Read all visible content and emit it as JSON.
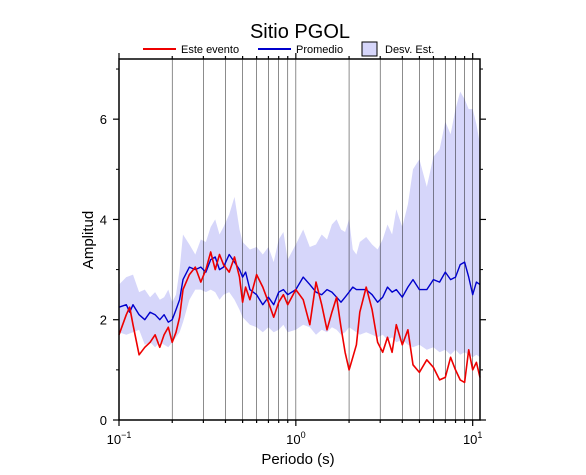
{
  "chart_data": {
    "type": "line",
    "title": "Sitio PGOL",
    "xlabel": "Periodo (s)",
    "ylabel": "Amplitud",
    "xscale": "log",
    "xlim": [
      0.1,
      11
    ],
    "ylim": [
      0,
      7.2
    ],
    "x_tick_labels": [
      {
        "base": "10",
        "exp": "−1",
        "value": 0.1
      },
      {
        "base": "10",
        "exp": "0",
        "value": 1
      },
      {
        "base": "10",
        "exp": "1",
        "value": 10
      }
    ],
    "y_ticks": [
      {
        "label": "0",
        "value": 0
      },
      {
        "label": "2",
        "value": 2
      },
      {
        "label": "4",
        "value": 4
      },
      {
        "label": "6",
        "value": 6
      }
    ],
    "grid": "vertical",
    "legend_position": "top",
    "legend": {
      "este_evento": "Este evento",
      "promedio": "Promedio",
      "desv_est": "Desv. Est."
    },
    "colors": {
      "este_evento": "#ee0000",
      "promedio": "#0000cc",
      "band_fill": "#d6d6fa",
      "grid": "#000000"
    },
    "series": [
      {
        "name": "Este evento",
        "x": [
          0.1,
          0.11,
          0.115,
          0.12,
          0.13,
          0.14,
          0.15,
          0.16,
          0.17,
          0.18,
          0.19,
          0.2,
          0.21,
          0.22,
          0.23,
          0.25,
          0.27,
          0.29,
          0.31,
          0.33,
          0.35,
          0.37,
          0.39,
          0.42,
          0.45,
          0.48,
          0.5,
          0.52,
          0.55,
          0.6,
          0.65,
          0.7,
          0.75,
          0.8,
          0.85,
          0.9,
          1.0,
          1.1,
          1.2,
          1.3,
          1.4,
          1.5,
          1.6,
          1.7,
          1.8,
          1.9,
          2.0,
          2.1,
          2.2,
          2.3,
          2.5,
          2.7,
          2.9,
          3.1,
          3.3,
          3.5,
          3.7,
          4.0,
          4.3,
          4.6,
          5.0,
          5.5,
          6.0,
          6.5,
          7.0,
          7.5,
          8.0,
          8.5,
          9.0,
          9.5,
          10.0,
          10.5,
          11.0
        ],
        "y": [
          1.7,
          2.1,
          2.25,
          1.9,
          1.3,
          1.45,
          1.55,
          1.7,
          1.45,
          1.7,
          1.85,
          1.55,
          1.75,
          2.05,
          2.6,
          2.9,
          3.05,
          2.75,
          3.0,
          3.35,
          3.0,
          3.3,
          3.1,
          2.95,
          3.25,
          2.85,
          2.35,
          2.65,
          2.4,
          2.9,
          2.65,
          2.35,
          2.05,
          2.35,
          2.5,
          2.3,
          2.6,
          2.4,
          1.9,
          2.75,
          2.3,
          1.8,
          2.15,
          2.45,
          1.85,
          1.35,
          1.0,
          1.25,
          1.5,
          2.15,
          2.65,
          2.2,
          1.55,
          1.35,
          1.65,
          1.35,
          1.9,
          1.5,
          1.8,
          1.1,
          0.95,
          1.2,
          1.05,
          0.8,
          0.85,
          1.25,
          1.0,
          0.8,
          0.75,
          1.4,
          1.0,
          1.15,
          0.85
        ]
      },
      {
        "name": "Promedio",
        "x": [
          0.1,
          0.11,
          0.115,
          0.12,
          0.13,
          0.14,
          0.15,
          0.16,
          0.17,
          0.18,
          0.19,
          0.2,
          0.21,
          0.22,
          0.23,
          0.25,
          0.27,
          0.29,
          0.31,
          0.33,
          0.35,
          0.37,
          0.39,
          0.42,
          0.45,
          0.48,
          0.5,
          0.52,
          0.55,
          0.6,
          0.65,
          0.7,
          0.75,
          0.8,
          0.85,
          0.9,
          1.0,
          1.1,
          1.2,
          1.3,
          1.4,
          1.5,
          1.6,
          1.7,
          1.8,
          1.9,
          2.0,
          2.1,
          2.2,
          2.3,
          2.5,
          2.7,
          2.9,
          3.1,
          3.3,
          3.5,
          3.7,
          4.0,
          4.3,
          4.6,
          5.0,
          5.5,
          6.0,
          6.5,
          7.0,
          7.5,
          8.0,
          8.5,
          9.0,
          9.5,
          10.0,
          10.5,
          11.0
        ],
        "y": [
          2.25,
          2.3,
          2.15,
          2.3,
          2.1,
          2.0,
          2.15,
          2.1,
          2.0,
          2.1,
          1.95,
          2.0,
          2.2,
          2.4,
          2.8,
          3.05,
          3.0,
          3.05,
          2.95,
          3.2,
          3.25,
          3.0,
          3.05,
          3.3,
          3.15,
          3.0,
          2.85,
          2.95,
          2.6,
          2.5,
          2.3,
          2.45,
          2.3,
          2.55,
          2.6,
          2.5,
          2.6,
          2.85,
          2.7,
          2.55,
          2.5,
          2.6,
          2.55,
          2.45,
          2.35,
          2.45,
          2.55,
          2.65,
          2.6,
          2.6,
          2.6,
          2.5,
          2.35,
          2.45,
          2.65,
          2.55,
          2.6,
          2.45,
          2.65,
          2.8,
          2.6,
          2.6,
          2.8,
          2.75,
          2.95,
          2.8,
          2.85,
          3.1,
          3.15,
          2.85,
          2.5,
          2.75,
          2.7
        ]
      }
    ],
    "band": {
      "name": "Desv. Est.",
      "x": [
        0.1,
        0.11,
        0.12,
        0.13,
        0.14,
        0.15,
        0.16,
        0.17,
        0.18,
        0.19,
        0.2,
        0.21,
        0.22,
        0.23,
        0.25,
        0.27,
        0.29,
        0.31,
        0.33,
        0.35,
        0.37,
        0.39,
        0.42,
        0.45,
        0.48,
        0.5,
        0.55,
        0.6,
        0.65,
        0.7,
        0.75,
        0.8,
        0.85,
        0.9,
        1.0,
        1.1,
        1.2,
        1.3,
        1.4,
        1.5,
        1.6,
        1.7,
        1.8,
        1.9,
        2.0,
        2.1,
        2.2,
        2.3,
        2.5,
        2.7,
        2.9,
        3.1,
        3.3,
        3.5,
        3.7,
        4.0,
        4.3,
        4.6,
        5.0,
        5.5,
        6.0,
        6.5,
        7.0,
        7.5,
        8.0,
        8.5,
        9.0,
        9.5,
        10.0,
        10.5,
        11.0
      ],
      "upper": [
        2.7,
        2.85,
        2.9,
        2.55,
        2.6,
        2.45,
        2.55,
        2.4,
        2.45,
        2.6,
        2.35,
        2.5,
        3.0,
        3.7,
        3.5,
        3.3,
        3.6,
        3.55,
        3.85,
        4.0,
        3.7,
        3.85,
        4.1,
        4.45,
        3.8,
        3.55,
        3.4,
        3.45,
        3.3,
        3.45,
        3.15,
        3.6,
        3.75,
        3.2,
        3.5,
        3.8,
        3.45,
        3.5,
        3.7,
        3.6,
        3.9,
        4.0,
        3.8,
        3.75,
        4.0,
        3.4,
        3.3,
        3.55,
        3.65,
        3.5,
        3.4,
        3.6,
        3.9,
        3.7,
        4.2,
        3.85,
        4.3,
        5.0,
        5.2,
        4.65,
        5.25,
        5.4,
        5.95,
        5.7,
        6.2,
        6.55,
        6.4,
        6.2,
        6.2,
        5.9,
        5.5
      ],
      "lower": [
        1.75,
        1.7,
        1.75,
        1.8,
        1.5,
        1.55,
        1.45,
        1.55,
        1.5,
        1.45,
        1.55,
        1.65,
        1.75,
        1.95,
        2.4,
        2.6,
        2.6,
        2.55,
        2.6,
        2.55,
        2.4,
        2.5,
        2.55,
        2.4,
        2.2,
        2.05,
        1.9,
        1.85,
        1.75,
        1.85,
        1.75,
        1.8,
        1.9,
        1.75,
        1.8,
        1.9,
        1.85,
        1.7,
        1.8,
        1.75,
        1.85,
        1.8,
        1.7,
        1.75,
        1.85,
        1.8,
        1.75,
        1.7,
        1.75,
        1.7,
        1.65,
        1.7,
        1.6,
        1.65,
        1.55,
        1.6,
        1.5,
        1.45,
        1.5,
        1.4,
        1.45,
        1.35,
        1.4,
        1.3,
        1.4,
        1.3,
        1.35,
        1.3,
        1.25,
        1.3,
        1.25
      ]
    }
  }
}
